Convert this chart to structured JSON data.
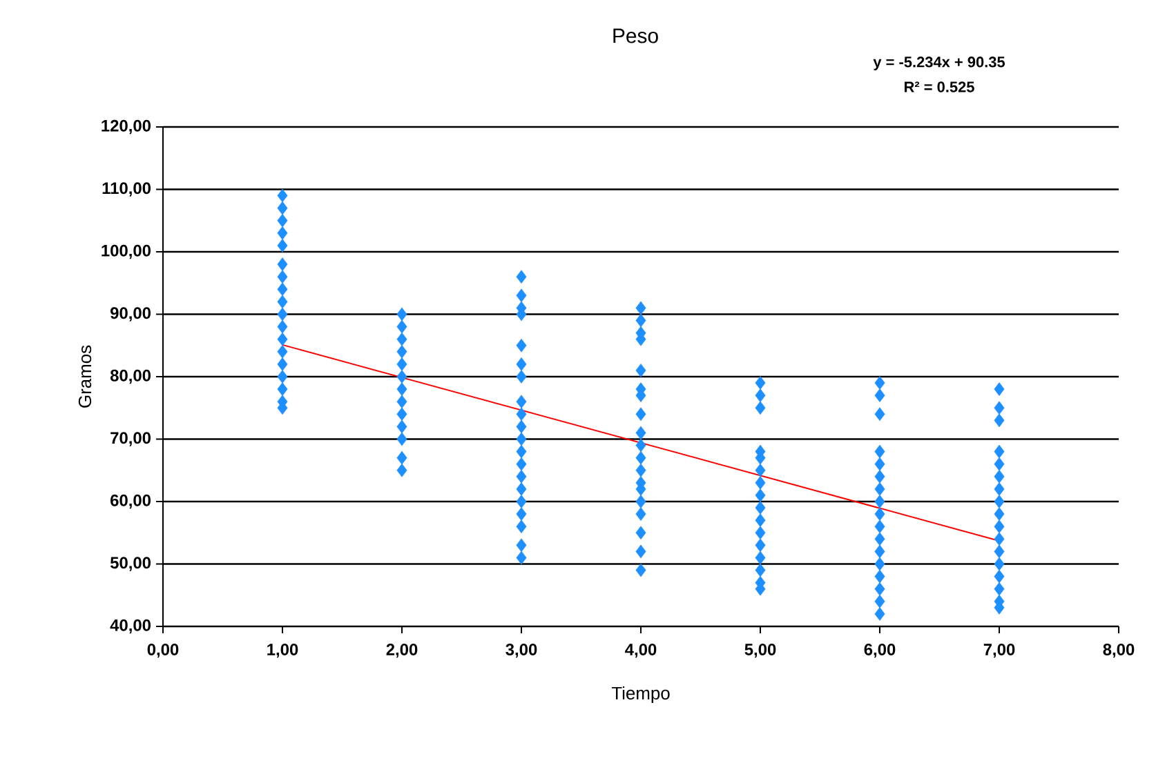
{
  "chart_data": {
    "type": "scatter",
    "title": "Peso",
    "xlabel": "Tiempo",
    "ylabel": "Gramos",
    "xlim": [
      0,
      8
    ],
    "ylim": [
      40,
      120
    ],
    "xticks": [
      {
        "value": 0,
        "label": "0,00"
      },
      {
        "value": 1,
        "label": "1,00"
      },
      {
        "value": 2,
        "label": "2,00"
      },
      {
        "value": 3,
        "label": "3,00"
      },
      {
        "value": 4,
        "label": "4,00"
      },
      {
        "value": 5,
        "label": "5,00"
      },
      {
        "value": 6,
        "label": "6,00"
      },
      {
        "value": 7,
        "label": "7,00"
      },
      {
        "value": 8,
        "label": "8,00"
      }
    ],
    "yticks": [
      {
        "value": 40,
        "label": "40,00"
      },
      {
        "value": 50,
        "label": "50,00"
      },
      {
        "value": 60,
        "label": "60,00"
      },
      {
        "value": 70,
        "label": "70,00"
      },
      {
        "value": 80,
        "label": "80,00"
      },
      {
        "value": 90,
        "label": "90,00"
      },
      {
        "value": 100,
        "label": "100,00"
      },
      {
        "value": 110,
        "label": "110,00"
      },
      {
        "value": 120,
        "label": "120,00"
      }
    ],
    "grid": "y",
    "series": [
      {
        "color": "#1e8fff",
        "marker": "diamond",
        "x": [
          1,
          1,
          1,
          1,
          1,
          1,
          1,
          1,
          1,
          1,
          1,
          1,
          1,
          1,
          1,
          1,
          1,
          1,
          2,
          2,
          2,
          2,
          2,
          2,
          2,
          2,
          2,
          2,
          2,
          2,
          2,
          3,
          3,
          3,
          3,
          3,
          3,
          3,
          3,
          3,
          3,
          3,
          3,
          3,
          3,
          3,
          3,
          3,
          3,
          3,
          3,
          4,
          4,
          4,
          4,
          4,
          4,
          4,
          4,
          4,
          4,
          4,
          4,
          4,
          4,
          4,
          4,
          4,
          4,
          4,
          5,
          5,
          5,
          5,
          5,
          5,
          5,
          5,
          5,
          5,
          5,
          5,
          5,
          5,
          5,
          5,
          6,
          6,
          6,
          6,
          6,
          6,
          6,
          6,
          6,
          6,
          6,
          6,
          6,
          6,
          6,
          6,
          6,
          7,
          7,
          7,
          7,
          7,
          7,
          7,
          7,
          7,
          7,
          7,
          7,
          7,
          7,
          7,
          7,
          7
        ],
        "values": [
          109,
          107,
          105,
          103,
          101,
          98,
          96,
          94,
          92,
          90,
          88,
          86,
          84,
          82,
          80,
          78,
          76,
          75,
          90,
          88,
          86,
          84,
          82,
          80,
          78,
          76,
          74,
          72,
          70,
          67,
          65,
          96,
          93,
          91,
          90,
          85,
          82,
          80,
          76,
          74,
          72,
          70,
          68,
          66,
          64,
          62,
          60,
          58,
          56,
          53,
          51,
          91,
          89,
          87,
          86,
          81,
          78,
          77,
          74,
          71,
          69,
          67,
          65,
          63,
          62,
          60,
          58,
          55,
          52,
          49,
          79,
          77,
          75,
          68,
          67,
          65,
          63,
          61,
          59,
          57,
          55,
          53,
          51,
          49,
          47,
          46,
          79,
          77,
          74,
          68,
          66,
          64,
          62,
          60,
          58,
          56,
          54,
          52,
          50,
          48,
          46,
          44,
          42,
          78,
          75,
          73,
          68,
          66,
          64,
          62,
          60,
          58,
          56,
          54,
          52,
          50,
          48,
          46,
          44,
          43
        ]
      },
      {
        "type": "line",
        "color": "#ff0000",
        "marker": "none",
        "x": [
          1,
          7
        ],
        "values": [
          85.1,
          53.7
        ]
      }
    ],
    "annotations": [
      "y = -5.234x + 90.35",
      "R² = 0.525"
    ]
  }
}
